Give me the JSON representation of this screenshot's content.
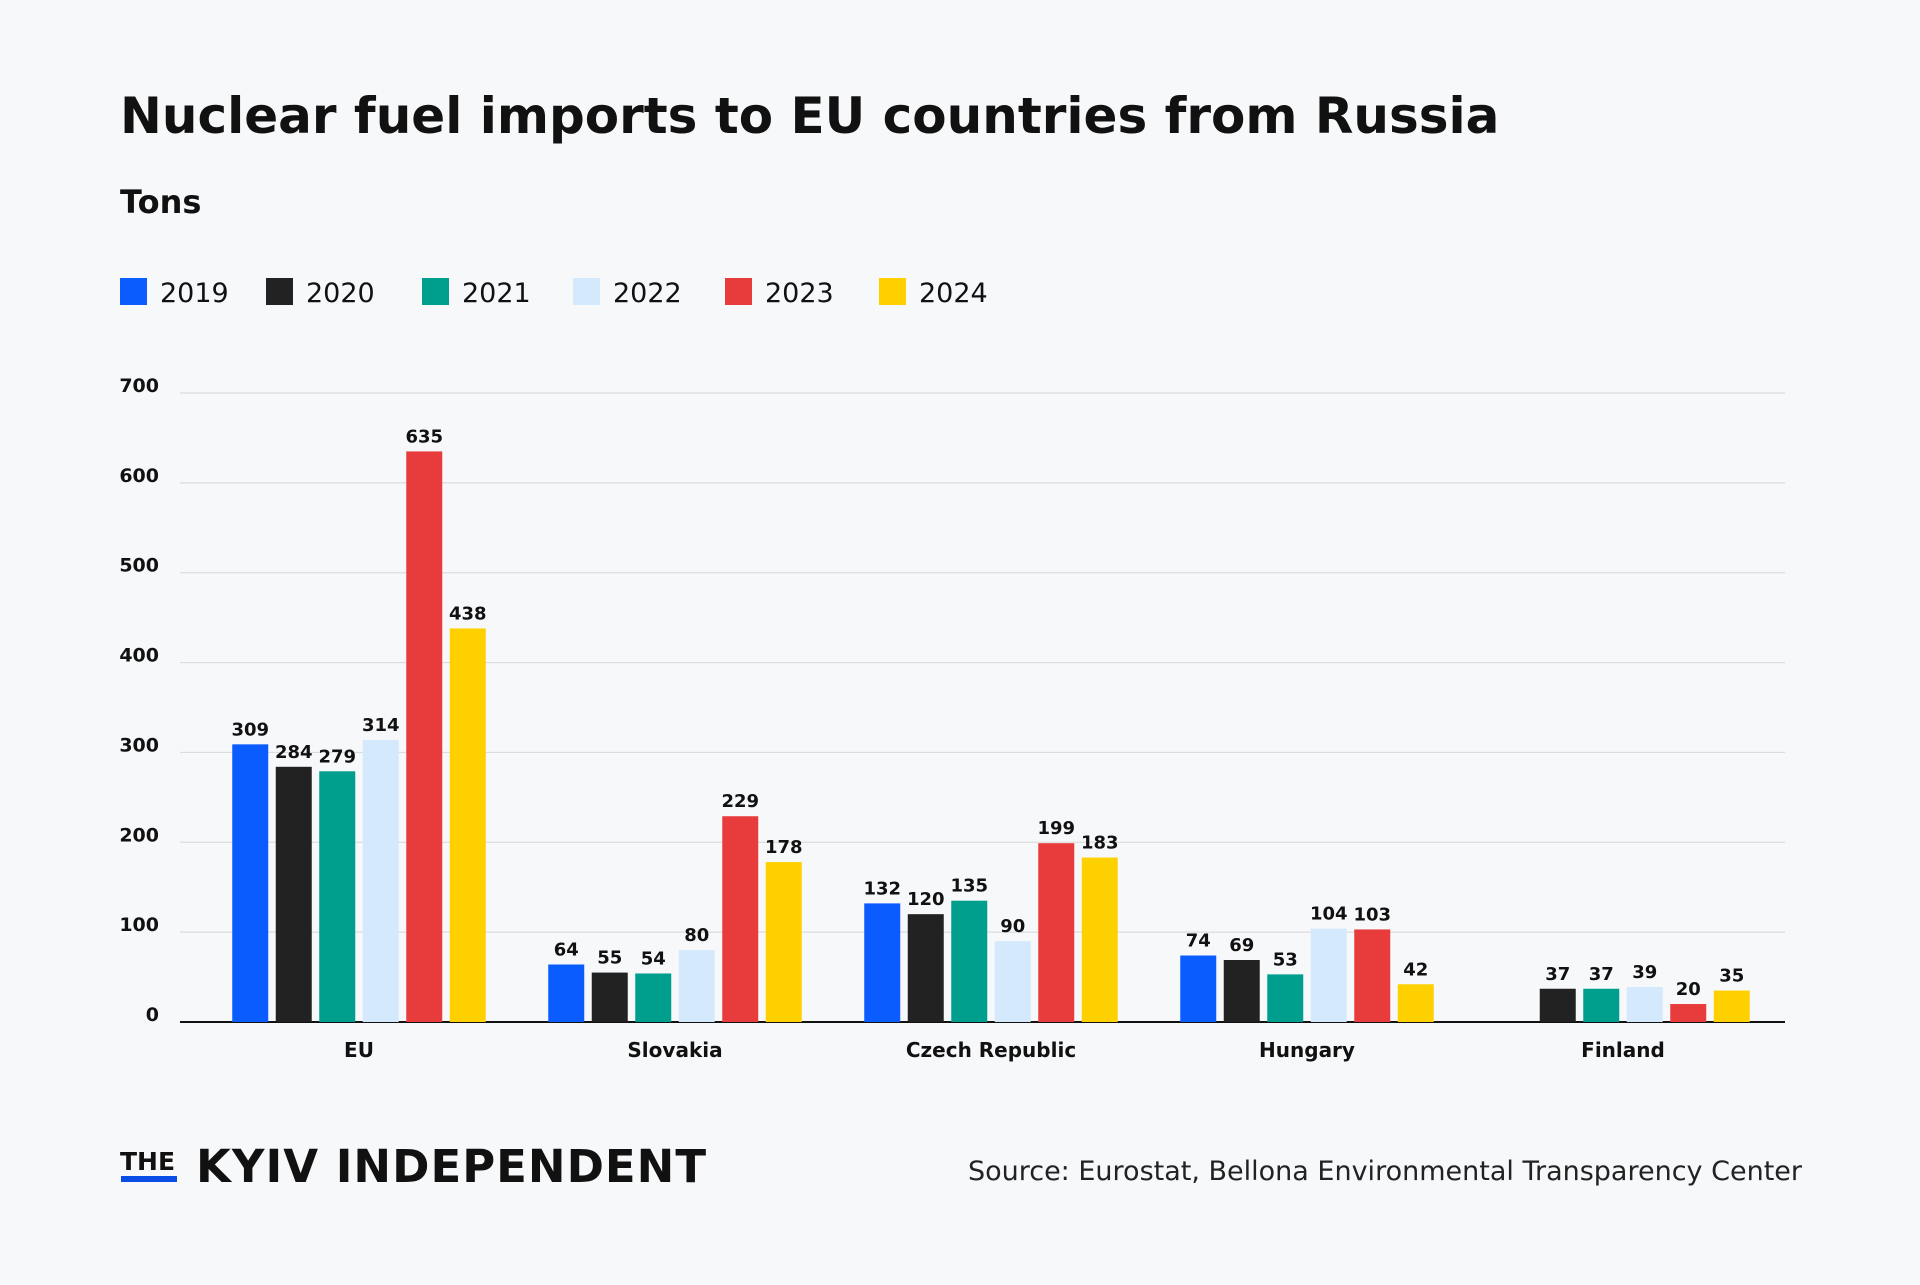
{
  "chart_data": {
    "type": "bar",
    "title": "Nuclear fuel imports to EU countries from Russia",
    "subtitle": "Tons",
    "categories": [
      "EU",
      "Slovakia",
      "Czech Republic",
      "Hungary",
      "Finland"
    ],
    "series": [
      {
        "name": "2019",
        "color": "#0a5cff",
        "values": [
          309,
          64,
          132,
          74,
          null
        ]
      },
      {
        "name": "2020",
        "color": "#222222",
        "values": [
          284,
          55,
          120,
          69,
          37
        ]
      },
      {
        "name": "2021",
        "color": "#009e8c",
        "values": [
          279,
          54,
          135,
          53,
          37
        ]
      },
      {
        "name": "2022",
        "color": "#d4eafc",
        "values": [
          314,
          80,
          90,
          104,
          39
        ]
      },
      {
        "name": "2023",
        "color": "#e83c3c",
        "values": [
          635,
          229,
          199,
          103,
          20
        ]
      },
      {
        "name": "2024",
        "color": "#ffd000",
        "values": [
          438,
          178,
          183,
          42,
          35
        ]
      }
    ],
    "ylim": [
      0,
      700
    ],
    "yticks": [
      0,
      100,
      200,
      300,
      400,
      500,
      600,
      700
    ],
    "grid": true,
    "legend": "top-left",
    "data_labels": true
  },
  "footer": {
    "logo_the": "THE",
    "logo_name": "KYIV INDEPENDENT",
    "source": "Source: Eurostat, Bellona Environmental Transparency Center"
  },
  "colors": {
    "background": "#f7f8fa",
    "grid": "#dddddd",
    "logo_accent": "#0a4de6"
  }
}
